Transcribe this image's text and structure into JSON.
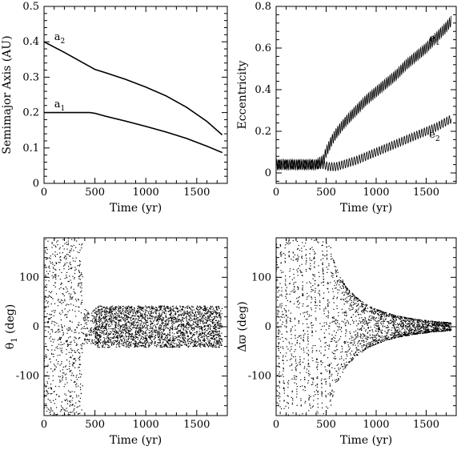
{
  "chart_data": [
    {
      "type": "line",
      "xlabel": "Time (yr)",
      "ylabel": "Semimajor Axis (AU)",
      "xlim": [
        0,
        1800
      ],
      "ylim": [
        0,
        0.5
      ],
      "xticks": [
        0,
        500,
        1000,
        1500
      ],
      "yticks": [
        0,
        0.1,
        0.2,
        0.3,
        0.4,
        0.5
      ],
      "grid": false,
      "annotations": [
        {
          "text": "a",
          "sub": "2",
          "x": 100,
          "y": 0.405
        },
        {
          "text": "a",
          "sub": "1",
          "x": 100,
          "y": 0.215
        }
      ],
      "series": [
        {
          "name": "a2",
          "x": [
            0,
            100,
            200,
            300,
            400,
            500,
            600,
            800,
            1000,
            1200,
            1400,
            1600,
            1750
          ],
          "y": [
            0.4,
            0.385,
            0.37,
            0.354,
            0.338,
            0.322,
            0.313,
            0.294,
            0.272,
            0.247,
            0.215,
            0.175,
            0.137
          ]
        },
        {
          "name": "a1",
          "x": [
            0,
            100,
            200,
            300,
            400,
            450,
            500,
            600,
            800,
            1000,
            1200,
            1400,
            1600,
            1750
          ],
          "y": [
            0.2,
            0.2,
            0.2,
            0.2,
            0.2,
            0.2,
            0.198,
            0.19,
            0.176,
            0.161,
            0.145,
            0.127,
            0.105,
            0.087
          ]
        }
      ]
    },
    {
      "type": "line",
      "xlabel": "Time (yr)",
      "ylabel": "Eccentricity",
      "xlim": [
        0,
        1800
      ],
      "ylim": [
        -0.05,
        0.8
      ],
      "xticks": [
        0,
        500,
        1000,
        1500
      ],
      "yticks": [
        0,
        0.2,
        0.4,
        0.6,
        0.8
      ],
      "grid": false,
      "annotations": [
        {
          "text": "e",
          "sub": "1",
          "x": 1530,
          "y": 0.63
        },
        {
          "text": "e",
          "sub": "2",
          "x": 1530,
          "y": 0.17
        }
      ],
      "series": [
        {
          "name": "e1",
          "x": [
            0,
            100,
            200,
            300,
            400,
            470,
            500,
            550,
            600,
            700,
            800,
            900,
            1000,
            1100,
            1200,
            1300,
            1400,
            1500,
            1600,
            1700,
            1750
          ],
          "y": [
            0.04,
            0.04,
            0.04,
            0.04,
            0.04,
            0.06,
            0.1,
            0.15,
            0.19,
            0.25,
            0.3,
            0.35,
            0.39,
            0.43,
            0.47,
            0.52,
            0.56,
            0.6,
            0.65,
            0.7,
            0.73
          ],
          "osc_amp": 0.025,
          "osc_period": 18
        },
        {
          "name": "e2",
          "x": [
            0,
            100,
            200,
            300,
            400,
            480,
            520,
            600,
            800,
            1000,
            1200,
            1400,
            1600,
            1750
          ],
          "y": [
            0.04,
            0.04,
            0.04,
            0.04,
            0.04,
            0.04,
            0.03,
            0.03,
            0.06,
            0.1,
            0.14,
            0.18,
            0.22,
            0.26
          ],
          "osc_amp": 0.02,
          "osc_period": 25
        }
      ]
    },
    {
      "type": "scatter",
      "xlabel": "Time (yr)",
      "ylabel": "θ",
      "ylabel_sub": "1",
      "ylabel_unit": "(deg)",
      "xlim": [
        0,
        1800
      ],
      "ylim": [
        -180,
        180
      ],
      "xticks": [
        0,
        500,
        1000,
        1500
      ],
      "yticks": [
        -100,
        0,
        100
      ],
      "grid": false,
      "regimes": [
        {
          "x_start": 0,
          "x_end": 380,
          "y_min": -180,
          "y_max": 180,
          "count": 700
        },
        {
          "x_start": 380,
          "x_end": 520,
          "y_min": -35,
          "y_max": 35,
          "count": 120
        },
        {
          "x_start": 500,
          "x_end": 1750,
          "y_min": -42,
          "y_max": 42,
          "count": 2600
        }
      ]
    },
    {
      "type": "scatter",
      "xlabel": "Time (yr)",
      "ylabel": "Δϖ",
      "ylabel_unit": "(deg)",
      "xlim": [
        0,
        1800
      ],
      "ylim": [
        -180,
        180
      ],
      "xticks": [
        0,
        500,
        1000,
        1500
      ],
      "yticks": [
        -100,
        0,
        100
      ],
      "grid": false,
      "envelope": {
        "x": [
          0,
          500,
          600,
          700,
          800,
          900,
          1000,
          1200,
          1400,
          1600,
          1750
        ],
        "amp": [
          180,
          180,
          120,
          80,
          60,
          45,
          35,
          22,
          15,
          10,
          8
        ]
      },
      "count": 2600
    }
  ]
}
